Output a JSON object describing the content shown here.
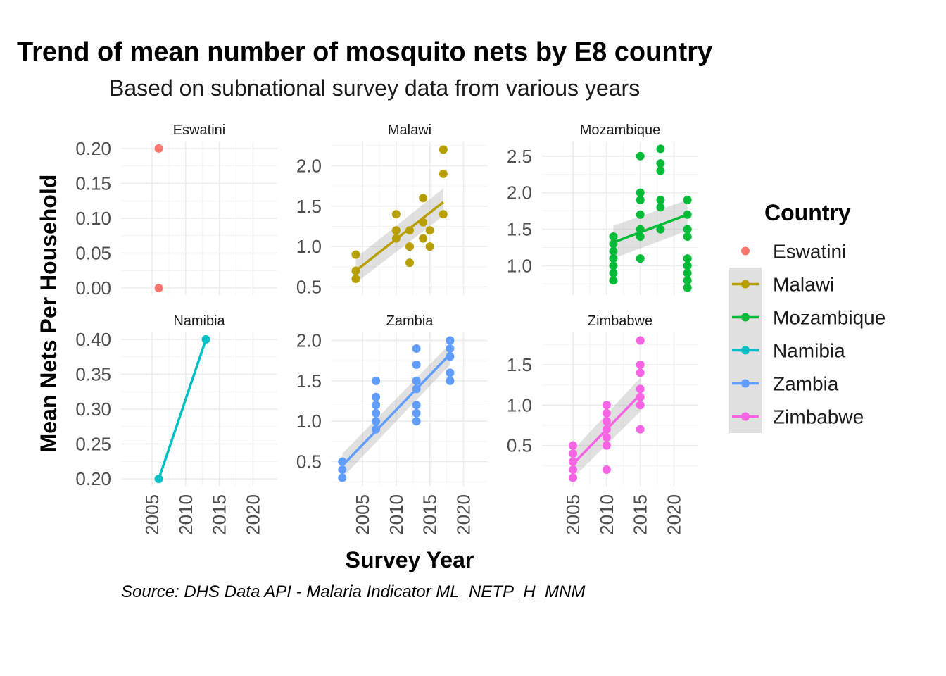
{
  "chart_data": {
    "type": "scatter",
    "title": "Trend of mean number of mosquito nets by E8 country",
    "subtitle": "Based on subnational survey data from various years",
    "xlabel": "Survey Year",
    "ylabel": "Mean Nets Per Household",
    "caption": "Source: DHS Data API - Malaria Indicator ML_NETP_H_MNM",
    "legend": {
      "title": "Country",
      "placement": "right",
      "items": [
        "Eswatini",
        "Malawi",
        "Mozambique",
        "Namibia",
        "Zambia",
        "Zimbabwe"
      ]
    },
    "grid": true,
    "smooth": "linear fit with confidence band",
    "x_ticks": [
      2005,
      2010,
      2015,
      2020
    ],
    "xlim": [
      2000.4,
      2023.6
    ],
    "facets": [
      {
        "name": "Eswatini",
        "color": "#F8766D",
        "ylim": [
          -0.01,
          0.21
        ],
        "y_ticks": [
          0.0,
          0.05,
          0.1,
          0.15,
          0.2
        ],
        "y_tick_labels": [
          "0.00",
          "0.05",
          "0.10",
          "0.15",
          "0.20"
        ],
        "points": [
          [
            2006,
            0.2
          ],
          [
            2006,
            0.0
          ]
        ],
        "fit": null
      },
      {
        "name": "Malawi",
        "color": "#B79F00",
        "ylim": [
          0.4,
          2.3
        ],
        "y_ticks": [
          0.5,
          1.0,
          1.5,
          2.0
        ],
        "y_tick_labels": [
          "0.5",
          "1.0",
          "1.5",
          "2.0"
        ],
        "points": [
          [
            2004,
            0.6
          ],
          [
            2004,
            0.7
          ],
          [
            2004,
            0.9
          ],
          [
            2010,
            1.1
          ],
          [
            2010,
            1.2
          ],
          [
            2010,
            1.4
          ],
          [
            2012,
            0.8
          ],
          [
            2012,
            1.0
          ],
          [
            2012,
            1.2
          ],
          [
            2014,
            1.1
          ],
          [
            2014,
            1.3
          ],
          [
            2014,
            1.6
          ],
          [
            2015,
            1.0
          ],
          [
            2015,
            1.2
          ],
          [
            2017,
            1.4
          ],
          [
            2017,
            1.9
          ],
          [
            2017,
            2.2
          ]
        ],
        "fit": {
          "x": [
            2004,
            2017
          ],
          "y": [
            0.7,
            1.55
          ],
          "band_start": [
            0.55,
            0.86
          ],
          "band_end": [
            1.38,
            1.72
          ]
        }
      },
      {
        "name": "Mozambique",
        "color": "#00BA38",
        "ylim": [
          0.6,
          2.7
        ],
        "y_ticks": [
          1.0,
          1.5,
          2.0,
          2.5
        ],
        "y_tick_labels": [
          "1.0",
          "1.5",
          "2.0",
          "2.5"
        ],
        "points": [
          [
            2011,
            0.8
          ],
          [
            2011,
            0.9
          ],
          [
            2011,
            1.0
          ],
          [
            2011,
            1.1
          ],
          [
            2011,
            1.2
          ],
          [
            2011,
            1.3
          ],
          [
            2011,
            1.4
          ],
          [
            2015,
            1.1
          ],
          [
            2015,
            1.4
          ],
          [
            2015,
            1.5
          ],
          [
            2015,
            1.7
          ],
          [
            2015,
            1.9
          ],
          [
            2015,
            2.0
          ],
          [
            2015,
            2.5
          ],
          [
            2018,
            1.5
          ],
          [
            2018,
            1.8
          ],
          [
            2018,
            1.9
          ],
          [
            2018,
            2.3
          ],
          [
            2018,
            2.4
          ],
          [
            2018,
            2.6
          ],
          [
            2022,
            0.7
          ],
          [
            2022,
            0.8
          ],
          [
            2022,
            0.9
          ],
          [
            2022,
            1.0
          ],
          [
            2022,
            1.1
          ],
          [
            2022,
            1.4
          ],
          [
            2022,
            1.5
          ],
          [
            2022,
            1.7
          ],
          [
            2022,
            1.9
          ]
        ],
        "fit": {
          "x": [
            2011,
            2022
          ],
          "y": [
            1.32,
            1.7
          ],
          "band_start": [
            1.1,
            1.55
          ],
          "band_end": [
            1.48,
            1.9
          ]
        }
      },
      {
        "name": "Namibia",
        "color": "#00BFC4",
        "ylim": [
          0.19,
          0.41
        ],
        "y_ticks": [
          0.2,
          0.25,
          0.3,
          0.35,
          0.4
        ],
        "y_tick_labels": [
          "0.20",
          "0.25",
          "0.30",
          "0.35",
          "0.40"
        ],
        "points": [
          [
            2006,
            0.2
          ],
          [
            2013,
            0.4
          ]
        ],
        "fit": {
          "x": [
            2006,
            2013
          ],
          "y": [
            0.2,
            0.4
          ],
          "band_start": [
            0.2,
            0.2
          ],
          "band_end": [
            0.4,
            0.4
          ]
        }
      },
      {
        "name": "Zambia",
        "color": "#619CFF",
        "ylim": [
          0.2,
          2.1
        ],
        "y_ticks": [
          0.5,
          1.0,
          1.5,
          2.0
        ],
        "y_tick_labels": [
          "0.5",
          "1.0",
          "1.5",
          "2.0"
        ],
        "points": [
          [
            2002,
            0.3
          ],
          [
            2002,
            0.4
          ],
          [
            2002,
            0.5
          ],
          [
            2007,
            0.9
          ],
          [
            2007,
            1.0
          ],
          [
            2007,
            1.1
          ],
          [
            2007,
            1.2
          ],
          [
            2007,
            1.3
          ],
          [
            2007,
            1.5
          ],
          [
            2013,
            1.0
          ],
          [
            2013,
            1.1
          ],
          [
            2013,
            1.2
          ],
          [
            2013,
            1.4
          ],
          [
            2013,
            1.5
          ],
          [
            2013,
            1.7
          ],
          [
            2013,
            1.9
          ],
          [
            2018,
            1.5
          ],
          [
            2018,
            1.6
          ],
          [
            2018,
            1.8
          ],
          [
            2018,
            1.9
          ],
          [
            2018,
            2.0
          ]
        ],
        "fit": {
          "x": [
            2002,
            2018
          ],
          "y": [
            0.45,
            1.83
          ],
          "band_start": [
            0.3,
            0.6
          ],
          "band_end": [
            1.7,
            1.96
          ]
        }
      },
      {
        "name": "Zimbabwe",
        "color": "#F564E3",
        "ylim": [
          0.0,
          1.9
        ],
        "y_ticks": [
          0.5,
          1.0,
          1.5
        ],
        "y_tick_labels": [
          "0.5",
          "1.0",
          "1.5"
        ],
        "points": [
          [
            2005,
            0.1
          ],
          [
            2005,
            0.2
          ],
          [
            2005,
            0.3
          ],
          [
            2005,
            0.4
          ],
          [
            2005,
            0.5
          ],
          [
            2010,
            0.2
          ],
          [
            2010,
            0.5
          ],
          [
            2010,
            0.6
          ],
          [
            2010,
            0.7
          ],
          [
            2010,
            0.8
          ],
          [
            2010,
            0.9
          ],
          [
            2010,
            1.0
          ],
          [
            2015,
            0.7
          ],
          [
            2015,
            1.0
          ],
          [
            2015,
            1.1
          ],
          [
            2015,
            1.2
          ],
          [
            2015,
            1.4
          ],
          [
            2015,
            1.5
          ],
          [
            2015,
            1.8
          ]
        ],
        "fit": {
          "x": [
            2005,
            2015
          ],
          "y": [
            0.27,
            1.13
          ],
          "band_start": [
            0.1,
            0.44
          ],
          "band_end": [
            0.92,
            1.34
          ]
        }
      }
    ]
  }
}
